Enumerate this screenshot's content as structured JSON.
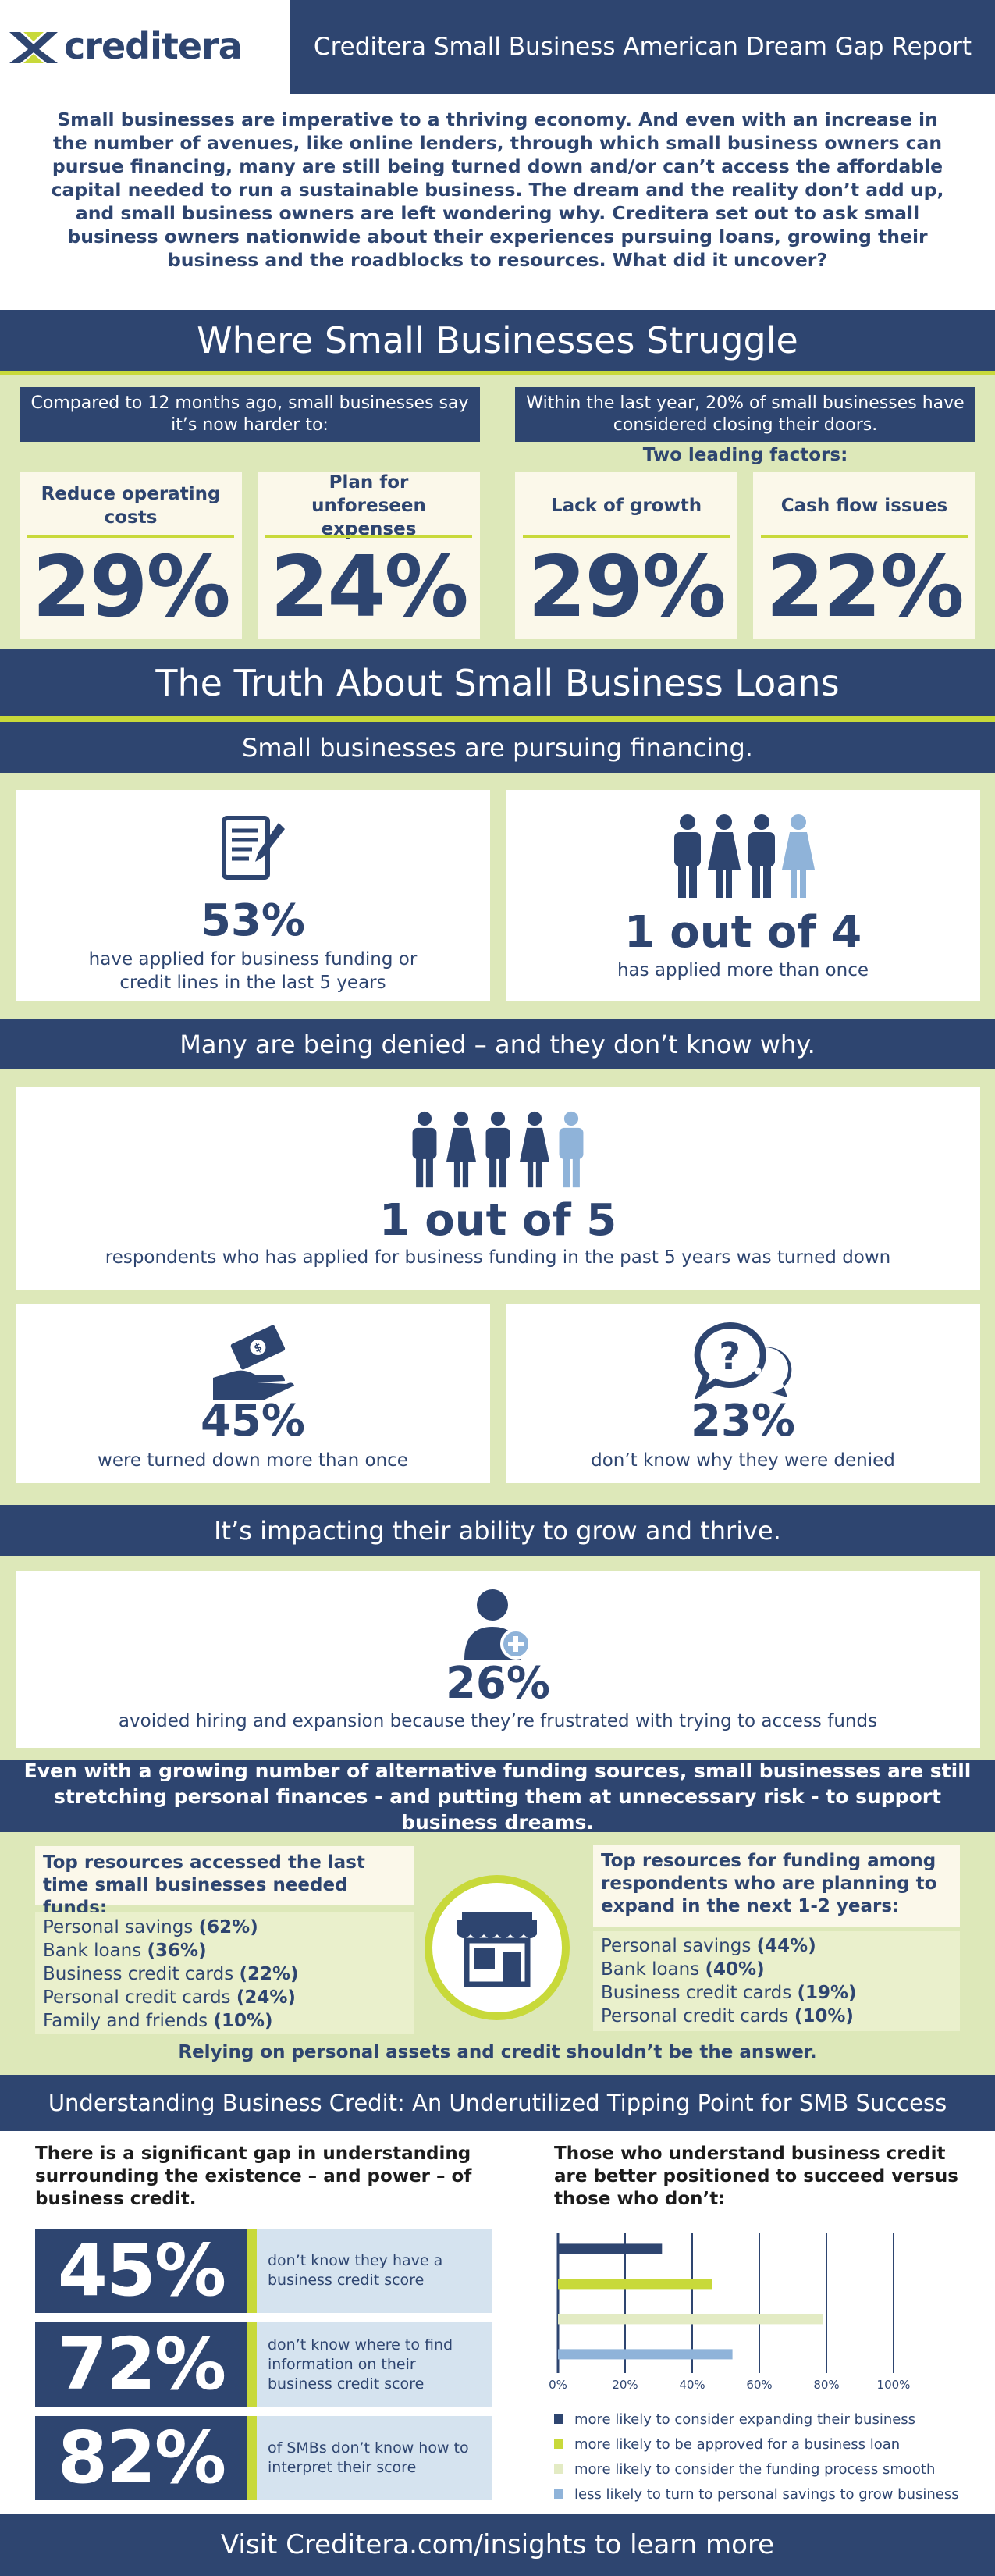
{
  "colors": {
    "navy": "#2e4570",
    "lime": "#c8d93a",
    "light_lime": "#dde8b9",
    "pale_lime": "#eaf0cc",
    "cream": "#fbf8ea",
    "light_blue": "#d5e3ef",
    "sky": "#8fb3d9"
  },
  "brand": {
    "logo_text": "creditera",
    "report_title": "Creditera Small Business American Dream Gap Report"
  },
  "intro": "Small businesses are imperative to a thriving economy. And even with an increase in the number of avenues, like online lenders, through which small business owners can pursue financing, many are still being turned down and/or can’t access the affordable capital needed to run a sustainable business. The dream and the reality don’t add up, and small business owners are left wondering why.  Creditera set out to ask small business owners nationwide about their experiences pursuing loans, growing their business and the roadblocks to resources. What did it uncover?",
  "struggle": {
    "title": "Where Small Businesses Struggle",
    "left_header": "Compared to 12 months ago, small businesses say it’s now harder to:",
    "right_header": "Within the last year, 20% of small businesses have considered closing their doors.",
    "two_factors": "Two leading factors:",
    "stats": [
      {
        "label": "Reduce operating costs",
        "value": "29%"
      },
      {
        "label": "Plan for unforeseen expenses",
        "value": "24%"
      },
      {
        "label": "Lack of growth",
        "value": "29%"
      },
      {
        "label": "Cash flow issues",
        "value": "22%"
      }
    ]
  },
  "loans": {
    "title": "The Truth About Small Business Loans",
    "pursuing_header": "Small businesses are pursuing financing.",
    "applied_pct": "53%",
    "applied_text": "have applied for business funding or credit lines in the last 5 years",
    "more_than_once": "1 out of 4",
    "more_than_once_text": "has applied more than once",
    "denied_header": "Many are being denied – and they don’t know why.",
    "one_of_five": "1 out of 5",
    "one_of_five_text": "respondents who has applied for business funding in the past 5 years was turned down",
    "turned_down_pct": "45%",
    "turned_down_text": "were turned down more than once",
    "dont_know_pct": "23%",
    "dont_know_text": "don’t know why they were denied",
    "impact_header": "It’s impacting their ability to grow and thrive.",
    "avoided_pct": "26%",
    "avoided_text": "avoided hiring and expansion because they’re frustrated with trying to access funds"
  },
  "alt_funding": {
    "banner": "Even with a growing number of alternative funding sources, small businesses are still stretching personal finances - and putting them at unnecessary risk - to support business dreams.",
    "left_title": "Top resources accessed the last time small businesses needed funds:",
    "left_items": [
      {
        "name": "Personal savings ",
        "pct": "(62%)"
      },
      {
        "name": "Bank loans ",
        "pct": "(36%)"
      },
      {
        "name": "Business credit cards ",
        "pct": "(22%)"
      },
      {
        "name": "Personal credit cards ",
        "pct": "(24%)"
      },
      {
        "name": "Family and friends ",
        "pct": "(10%)"
      }
    ],
    "right_title": "Top resources for funding among respondents who are planning to expand in the next 1-2 years:",
    "right_items": [
      {
        "name": "Personal savings ",
        "pct": "(44%)"
      },
      {
        "name": "Bank loans ",
        "pct": "(40%)"
      },
      {
        "name": "Business credit cards ",
        "pct": "(19%)"
      },
      {
        "name": "Personal credit cards ",
        "pct": "(10%)"
      }
    ],
    "footer": "Relying on personal assets and credit shouldn’t be the answer."
  },
  "credit": {
    "title": "Understanding Business Credit: An Underutilized Tipping Point for SMB Success",
    "left_intro": "There is a significant gap in understanding surrounding the existence – and power – of business credit.",
    "stats": [
      {
        "value": "45%",
        "text": "don’t know they have a business credit score"
      },
      {
        "value": "72%",
        "text": "don’t know where to find information on their business credit score"
      },
      {
        "value": "82%",
        "text": "of SMBs don’t know how to interpret their score"
      }
    ],
    "right_intro": "Those who understand business credit are better positioned to succeed versus those who don’t:"
  },
  "chart_data": {
    "type": "bar",
    "orientation": "horizontal",
    "xlim": [
      0,
      100
    ],
    "x_ticks": [
      "0%",
      "20%",
      "40%",
      "60%",
      "80%",
      "100%"
    ],
    "series": [
      {
        "name": "more likely to consider expanding their business",
        "value": 31,
        "color": "#2e4570"
      },
      {
        "name": "more likely to be approved for a business loan",
        "value": 46,
        "color": "#c8d93a"
      },
      {
        "name": "more likely to consider the funding process smooth",
        "value": 79,
        "color": "#e3ebc4"
      },
      {
        "name": "less likely to turn to personal savings to grow business",
        "value": 52,
        "color": "#8fb3d9"
      }
    ],
    "legend_position": "bottom",
    "grid": true
  },
  "footer": {
    "cta": "Visit Creditera.com/insights to learn more"
  }
}
